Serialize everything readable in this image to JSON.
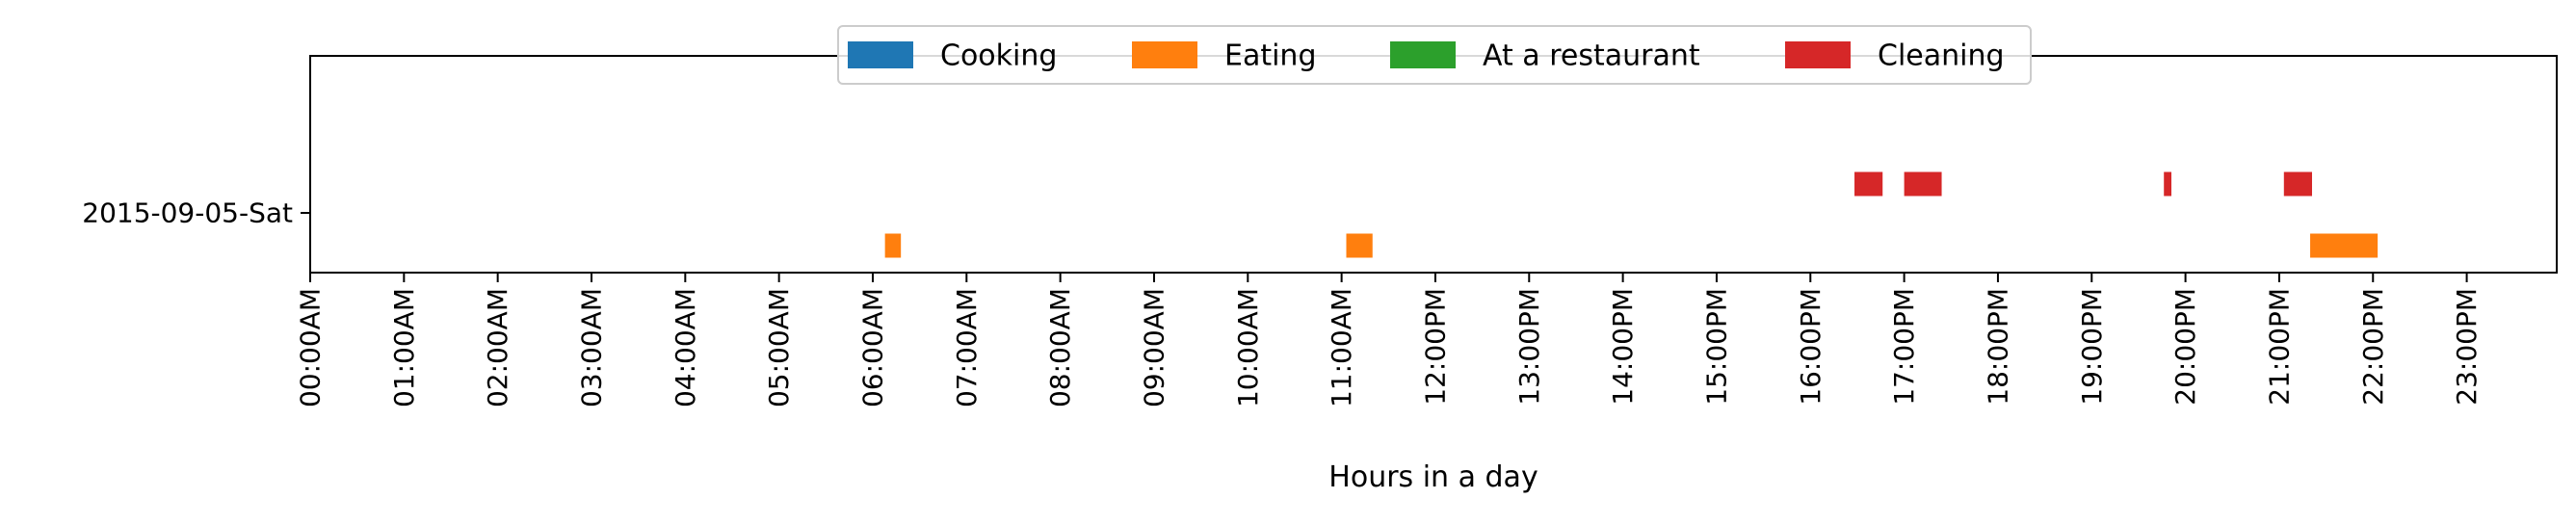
{
  "chart_data": {
    "type": "timeline",
    "title": "",
    "xlabel": "Hours in a day",
    "ylabel": "",
    "xlim": [
      0,
      24
    ],
    "x_unit": "hour of day",
    "x_ticks": [
      {
        "value": 0,
        "label": "00:00AM"
      },
      {
        "value": 1,
        "label": "01:00AM"
      },
      {
        "value": 2,
        "label": "02:00AM"
      },
      {
        "value": 3,
        "label": "03:00AM"
      },
      {
        "value": 4,
        "label": "04:00AM"
      },
      {
        "value": 5,
        "label": "05:00AM"
      },
      {
        "value": 6,
        "label": "06:00AM"
      },
      {
        "value": 7,
        "label": "07:00AM"
      },
      {
        "value": 8,
        "label": "08:00AM"
      },
      {
        "value": 9,
        "label": "09:00AM"
      },
      {
        "value": 10,
        "label": "10:00AM"
      },
      {
        "value": 11,
        "label": "11:00AM"
      },
      {
        "value": 12,
        "label": "12:00PM"
      },
      {
        "value": 13,
        "label": "13:00PM"
      },
      {
        "value": 14,
        "label": "14:00PM"
      },
      {
        "value": 15,
        "label": "15:00PM"
      },
      {
        "value": 16,
        "label": "16:00PM"
      },
      {
        "value": 17,
        "label": "17:00PM"
      },
      {
        "value": 18,
        "label": "18:00PM"
      },
      {
        "value": 19,
        "label": "19:00PM"
      },
      {
        "value": 20,
        "label": "20:00PM"
      },
      {
        "value": 21,
        "label": "21:00PM"
      },
      {
        "value": 22,
        "label": "22:00PM"
      },
      {
        "value": 23,
        "label": "23:00PM"
      }
    ],
    "rows": [
      "2015-09-05-Sat"
    ],
    "legend": {
      "placement": "top-center",
      "entries": [
        {
          "name": "Cooking",
          "color": "#1f77b4"
        },
        {
          "name": "Eating",
          "color": "#ff7f0e"
        },
        {
          "name": "At a restaurant",
          "color": "#2ca02c"
        },
        {
          "name": "Cleaning",
          "color": "#d62728"
        }
      ]
    },
    "series": [
      {
        "name": "Cooking",
        "color": "#1f77b4",
        "lane": 0,
        "intervals": []
      },
      {
        "name": "Eating",
        "color": "#ff7f0e",
        "lane": 1,
        "intervals": [
          {
            "row": "2015-09-05-Sat",
            "start": 6.13,
            "end": 6.3
          },
          {
            "row": "2015-09-05-Sat",
            "start": 11.05,
            "end": 11.33
          },
          {
            "row": "2015-09-05-Sat",
            "start": 21.33,
            "end": 22.05
          }
        ]
      },
      {
        "name": "At a restaurant",
        "color": "#2ca02c",
        "lane": 2,
        "intervals": []
      },
      {
        "name": "Cleaning",
        "color": "#d62728",
        "lane": -1,
        "intervals": [
          {
            "row": "2015-09-05-Sat",
            "start": 16.47,
            "end": 16.77
          },
          {
            "row": "2015-09-05-Sat",
            "start": 17.0,
            "end": 17.4
          },
          {
            "row": "2015-09-05-Sat",
            "start": 19.77,
            "end": 19.85
          },
          {
            "row": "2015-09-05-Sat",
            "start": 21.05,
            "end": 21.35
          }
        ]
      }
    ],
    "grid": false
  }
}
